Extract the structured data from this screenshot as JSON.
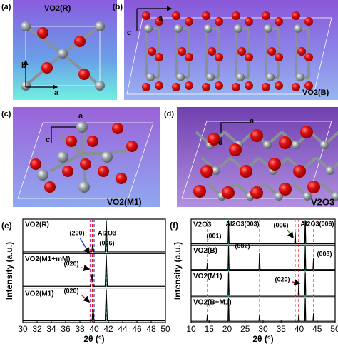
{
  "structures": [
    {
      "label": "(a)",
      "phase": "VO2(R)",
      "axes": [
        "b",
        "a"
      ]
    },
    {
      "label": "(b)",
      "phase": "VO2(B)",
      "axes": [
        "a",
        "c"
      ]
    },
    {
      "label": "(c)",
      "phase": "VO2(M1)",
      "axes": [
        "a",
        "c"
      ]
    },
    {
      "label": "(d)",
      "phase": "V2O3",
      "axes": [
        "a",
        "c"
      ]
    }
  ],
  "chart_data": [
    {
      "type": "line",
      "panel_label": "(e)",
      "xlabel": "2θ (°)",
      "ylabel": "Intensity (a.u.)",
      "xlim": [
        30,
        50
      ],
      "xticks": [
        30,
        32,
        34,
        36,
        38,
        40,
        42,
        44,
        46,
        48,
        50
      ],
      "ylim": [
        0,
        3
      ],
      "series": [
        {
          "name": "VO2(R)",
          "color": "#000000",
          "x": [
            30,
            39.65,
            39.8,
            39.95,
            41.55,
            41.7,
            41.85,
            50
          ],
          "values": [
            2.05,
            2.05,
            2.25,
            2.05,
            2.05,
            2.95,
            2.05,
            2.05
          ]
        },
        {
          "name": "VO2(M1+mM)",
          "color": "#000000",
          "x": [
            30,
            39.5,
            39.7,
            39.9,
            41.55,
            41.7,
            41.85,
            50
          ],
          "values": [
            1.05,
            1.05,
            1.4,
            1.05,
            1.05,
            1.95,
            1.05,
            1.05
          ]
        },
        {
          "name": "VO2(M1)",
          "color": "#000000",
          "x": [
            30,
            39.7,
            39.85,
            40.0,
            41.55,
            41.7,
            41.85,
            50
          ],
          "values": [
            0.05,
            0.05,
            0.4,
            0.05,
            0.05,
            0.95,
            0.05,
            0.05
          ]
        }
      ],
      "ref_lines": [
        {
          "x": 39.45,
          "color": "#d63c9a"
        },
        {
          "x": 39.75,
          "color": "#e02020"
        },
        {
          "x": 40.0,
          "color": "#3050e0"
        },
        {
          "x": 41.7,
          "color": "#2aa07a"
        }
      ],
      "annotations": [
        "(200)",
        "Al2O3",
        "(006)",
        "(020)",
        "(020)"
      ]
    },
    {
      "type": "line",
      "panel_label": "(f)",
      "xlabel": "2θ (°)",
      "ylabel": "Intensity (a.u.)",
      "xlim": [
        10,
        50
      ],
      "xticks": [
        10,
        15,
        20,
        25,
        30,
        35,
        40,
        45,
        50
      ],
      "ylim": [
        0,
        4
      ],
      "series": [
        {
          "name": "V2O3",
          "color": "#000000",
          "x": [
            10,
            20.25,
            20.4,
            20.55,
            38.75,
            38.9,
            39.05,
            41.55,
            41.7,
            41.85,
            50
          ],
          "values": [
            3.05,
            3.05,
            3.95,
            3.05,
            3.05,
            3.5,
            3.05,
            3.05,
            3.95,
            3.05,
            3.05
          ]
        },
        {
          "name": "VO2(B)",
          "color": "#000000",
          "x": [
            10,
            14.35,
            14.5,
            14.65,
            20.25,
            20.4,
            20.55,
            28.85,
            29.0,
            29.15,
            41.55,
            41.7,
            41.85,
            43.85,
            44.0,
            44.15,
            50
          ],
          "values": [
            2.05,
            2.05,
            2.3,
            2.05,
            2.05,
            2.95,
            2.05,
            2.05,
            2.7,
            2.05,
            2.05,
            2.95,
            2.05,
            2.05,
            2.5,
            2.05,
            2.05
          ]
        },
        {
          "name": "VO2(M1)",
          "color": "#000000",
          "x": [
            10,
            20.25,
            20.4,
            20.55,
            39.75,
            39.9,
            40.05,
            41.55,
            41.7,
            41.85,
            50
          ],
          "values": [
            1.05,
            1.05,
            1.95,
            1.05,
            1.05,
            1.5,
            1.05,
            1.05,
            1.95,
            1.05,
            1.05
          ]
        },
        {
          "name": "VO2(B+M1)",
          "color": "#000000",
          "x": [
            10,
            14.35,
            14.5,
            14.65,
            20.25,
            20.4,
            20.55,
            28.85,
            29.0,
            29.15,
            39.75,
            39.9,
            40.05,
            41.55,
            41.7,
            41.85,
            43.85,
            44.0,
            44.15,
            50
          ],
          "values": [
            0.05,
            0.05,
            0.3,
            0.05,
            0.05,
            0.95,
            0.05,
            0.05,
            0.3,
            0.05,
            0.05,
            0.3,
            0.05,
            0.05,
            0.95,
            0.05,
            0.05,
            0.35,
            0.05,
            0.05
          ]
        }
      ],
      "ref_lines": [
        {
          "x": 14.5,
          "color": "#f08020"
        },
        {
          "x": 20.4,
          "color": "#20b8c8"
        },
        {
          "x": 29.0,
          "color": "#f08020"
        },
        {
          "x": 38.9,
          "color": "#40c040"
        },
        {
          "x": 39.9,
          "color": "#e02020"
        },
        {
          "x": 41.7,
          "color": "#20b8c8"
        },
        {
          "x": 44.0,
          "color": "#f08020"
        }
      ],
      "annotations": [
        "(001)",
        "(002)",
        "(003)",
        "(020)",
        "(006)",
        "Al2O3(003)",
        "Al2O3(006)"
      ]
    }
  ]
}
